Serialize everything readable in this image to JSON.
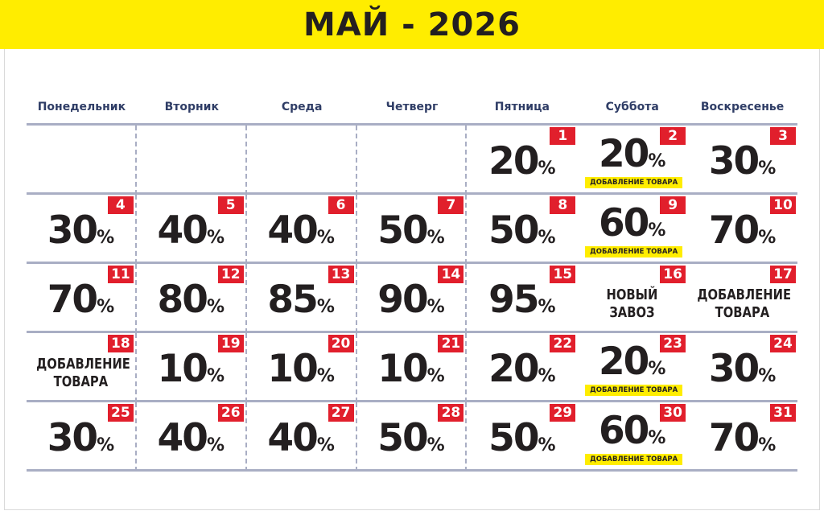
{
  "title": "МАЙ - 2026",
  "weekdays": [
    "Понедельник",
    "Вторник",
    "Среда",
    "Четверг",
    "Пятница",
    "Суббота",
    "Воскресенье"
  ],
  "colors": {
    "banner": "#ffed00",
    "day_badge": "#e11f2c",
    "text": "#231f20",
    "weekday_text": "#2f3d66",
    "grid_line": "#a9aec4"
  },
  "percent_sign": "%",
  "leading_blank_days": 4,
  "days": [
    {
      "day": "1",
      "value": "20"
    },
    {
      "day": "2",
      "value": "20",
      "tag": "ДОБАВЛЕНИЕ ТОВАРА"
    },
    {
      "day": "3",
      "value": "30"
    },
    {
      "day": "4",
      "value": "30"
    },
    {
      "day": "5",
      "value": "40"
    },
    {
      "day": "6",
      "value": "40"
    },
    {
      "day": "7",
      "value": "50"
    },
    {
      "day": "8",
      "value": "50"
    },
    {
      "day": "9",
      "value": "60",
      "tag": "ДОБАВЛЕНИЕ ТОВАРА"
    },
    {
      "day": "10",
      "value": "70"
    },
    {
      "day": "11",
      "value": "70"
    },
    {
      "day": "12",
      "value": "80"
    },
    {
      "day": "13",
      "value": "85"
    },
    {
      "day": "14",
      "value": "90"
    },
    {
      "day": "15",
      "value": "95"
    },
    {
      "day": "16",
      "event": [
        "НОВЫЙ",
        "ЗАВОЗ"
      ]
    },
    {
      "day": "17",
      "event": [
        "ДОБАВЛЕНИЕ",
        "ТОВАРА"
      ]
    },
    {
      "day": "18",
      "event": [
        "ДОБАВЛЕНИЕ",
        "ТОВАРА"
      ]
    },
    {
      "day": "19",
      "value": "10"
    },
    {
      "day": "20",
      "value": "10"
    },
    {
      "day": "21",
      "value": "10"
    },
    {
      "day": "22",
      "value": "20"
    },
    {
      "day": "23",
      "value": "20",
      "tag": "ДОБАВЛЕНИЕ ТОВАРА"
    },
    {
      "day": "24",
      "value": "30"
    },
    {
      "day": "25",
      "value": "30"
    },
    {
      "day": "26",
      "value": "40"
    },
    {
      "day": "27",
      "value": "40"
    },
    {
      "day": "28",
      "value": "50"
    },
    {
      "day": "29",
      "value": "50"
    },
    {
      "day": "30",
      "value": "60",
      "tag": "ДОБАВЛЕНИЕ ТОВАРА"
    },
    {
      "day": "31",
      "value": "70"
    }
  ]
}
